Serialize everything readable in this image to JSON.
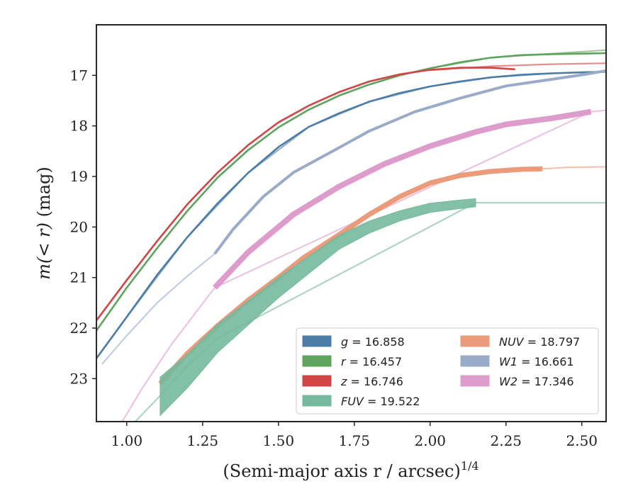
{
  "chart_data": {
    "type": "line",
    "xlabel": "(Semi-major axis r / arcsec)",
    "xlabel_italic": "r",
    "xlabel_sup": "1/4",
    "ylabel_prefix": "m(< r)",
    "ylabel_suffix": " (mag)",
    "xlim": [
      0.9,
      2.58
    ],
    "ylim": [
      23.85,
      16.0
    ],
    "y_inverted": true,
    "xticks": [
      1.0,
      1.25,
      1.5,
      1.75,
      2.0,
      2.25,
      2.5
    ],
    "xtick_labels": [
      "1.00",
      "1.25",
      "1.50",
      "1.75",
      "2.00",
      "2.25",
      "2.50"
    ],
    "yticks": [
      17,
      18,
      19,
      20,
      21,
      22,
      23
    ],
    "ytick_labels": [
      "17",
      "18",
      "19",
      "20",
      "21",
      "22",
      "23"
    ],
    "grid": false,
    "legend_position": "lower-right",
    "series": [
      {
        "name": "g = 16.858",
        "name_var": "g",
        "name_val": " = 16.858",
        "color": "#4c7ca8",
        "profile": [
          [
            0.9,
            22.6
          ],
          [
            1.0,
            21.78
          ],
          [
            1.1,
            20.95
          ],
          [
            1.2,
            20.2
          ],
          [
            1.3,
            19.53
          ],
          [
            1.4,
            18.93
          ],
          [
            1.5,
            18.42
          ],
          [
            1.6,
            18.02
          ],
          [
            1.7,
            17.75
          ],
          [
            1.8,
            17.52
          ],
          [
            1.9,
            17.35
          ],
          [
            2.0,
            17.22
          ],
          [
            2.1,
            17.12
          ],
          [
            2.2,
            17.04
          ],
          [
            2.3,
            16.99
          ],
          [
            2.4,
            16.96
          ],
          [
            2.5,
            16.94
          ],
          [
            2.58,
            16.93
          ]
        ],
        "model": [
          [
            0.9,
            22.6
          ],
          [
            1.0,
            21.78
          ],
          [
            1.2,
            20.2
          ],
          [
            1.4,
            18.93
          ],
          [
            1.6,
            18.02
          ],
          [
            1.8,
            17.52
          ],
          [
            2.0,
            17.22
          ],
          [
            2.2,
            17.04
          ],
          [
            2.4,
            16.96
          ],
          [
            2.58,
            16.93
          ]
        ]
      },
      {
        "name": "r = 16.457",
        "name_var": "r",
        "name_val": " = 16.457",
        "color": "#5ea35e",
        "profile": [
          [
            0.9,
            22.05
          ],
          [
            1.0,
            21.2
          ],
          [
            1.1,
            20.42
          ],
          [
            1.2,
            19.68
          ],
          [
            1.3,
            19.02
          ],
          [
            1.4,
            18.48
          ],
          [
            1.5,
            18.03
          ],
          [
            1.6,
            17.68
          ],
          [
            1.7,
            17.4
          ],
          [
            1.8,
            17.18
          ],
          [
            1.9,
            17.0
          ],
          [
            2.0,
            16.86
          ],
          [
            2.1,
            16.74
          ],
          [
            2.2,
            16.65
          ],
          [
            2.3,
            16.6
          ],
          [
            2.4,
            16.58
          ],
          [
            2.5,
            16.57
          ],
          [
            2.58,
            16.56
          ]
        ],
        "model": [
          [
            2.0,
            16.86
          ],
          [
            2.2,
            16.65
          ],
          [
            2.4,
            16.57
          ],
          [
            2.58,
            16.5
          ]
        ]
      },
      {
        "name": "z = 16.746",
        "name_var": "z",
        "name_val": " = 16.746",
        "color": "#d14545",
        "profile": [
          [
            0.9,
            21.85
          ],
          [
            1.0,
            21.05
          ],
          [
            1.1,
            20.28
          ],
          [
            1.2,
            19.55
          ],
          [
            1.3,
            18.92
          ],
          [
            1.4,
            18.38
          ],
          [
            1.5,
            17.93
          ],
          [
            1.6,
            17.6
          ],
          [
            1.7,
            17.33
          ],
          [
            1.8,
            17.12
          ],
          [
            1.9,
            16.98
          ],
          [
            2.0,
            16.89
          ],
          [
            2.1,
            16.85
          ],
          [
            2.2,
            16.85
          ],
          [
            2.28,
            16.88
          ]
        ],
        "model": [
          [
            2.0,
            16.9
          ],
          [
            2.2,
            16.82
          ],
          [
            2.4,
            16.78
          ],
          [
            2.58,
            16.76
          ]
        ]
      },
      {
        "name": "W1 = 16.661",
        "name_var": "W1",
        "name_val": " = 16.661",
        "color": "#9aabca",
        "profile": [
          [
            1.29,
            20.53
          ],
          [
            1.35,
            20.05
          ],
          [
            1.45,
            19.4
          ],
          [
            1.55,
            18.92
          ],
          [
            1.7,
            18.43
          ],
          [
            1.8,
            18.1
          ],
          [
            1.95,
            17.72
          ],
          [
            2.1,
            17.45
          ],
          [
            2.25,
            17.21
          ],
          [
            2.4,
            17.08
          ],
          [
            2.5,
            16.99
          ],
          [
            2.58,
            16.91
          ]
        ],
        "model": [
          [
            0.92,
            22.7
          ],
          [
            1.0,
            22.15
          ],
          [
            1.1,
            21.5
          ],
          [
            1.2,
            20.97
          ],
          [
            1.29,
            20.53
          ]
        ],
        "width": 4
      },
      {
        "name": "NUV = 18.797",
        "name_var": "NUV",
        "name_val": " = 18.797",
        "color": "#eb9a7a",
        "profile": [
          [
            1.11,
            23.1
          ],
          [
            1.2,
            22.5
          ],
          [
            1.3,
            21.95
          ],
          [
            1.4,
            21.45
          ],
          [
            1.5,
            21.0
          ],
          [
            1.58,
            20.62
          ],
          [
            1.7,
            20.15
          ],
          [
            1.8,
            19.75
          ],
          [
            1.9,
            19.4
          ],
          [
            2.0,
            19.13
          ],
          [
            2.1,
            18.98
          ],
          [
            2.2,
            18.9
          ],
          [
            2.3,
            18.86
          ],
          [
            2.37,
            18.85
          ]
        ],
        "model": [
          [
            2.37,
            18.85
          ],
          [
            2.45,
            18.82
          ],
          [
            2.58,
            18.81
          ]
        ],
        "width": 7
      },
      {
        "name": "W2 = 17.346",
        "name_var": "W2",
        "name_val": " = 17.346",
        "color": "#dd9ccb",
        "profile": [
          [
            1.29,
            21.2
          ],
          [
            1.4,
            20.5
          ],
          [
            1.55,
            19.75
          ],
          [
            1.7,
            19.2
          ],
          [
            1.85,
            18.75
          ],
          [
            2.0,
            18.4
          ],
          [
            2.15,
            18.12
          ],
          [
            2.25,
            17.97
          ],
          [
            2.4,
            17.85
          ],
          [
            2.53,
            17.72
          ]
        ],
        "model": [
          [
            0.98,
            23.9
          ],
          [
            1.05,
            23.2
          ],
          [
            1.15,
            22.3
          ],
          [
            1.22,
            21.75
          ],
          [
            1.29,
            21.2
          ],
          [
            2.53,
            17.72
          ],
          [
            2.58,
            17.69
          ]
        ],
        "width": 8
      },
      {
        "name": "FUV = 19.522",
        "name_var": "FUV",
        "name_val": " = 19.522",
        "color": "#76b99f",
        "profile": [
          [
            1.11,
            23.35
          ],
          [
            1.2,
            22.85
          ],
          [
            1.3,
            22.2
          ],
          [
            1.4,
            21.7
          ],
          [
            1.5,
            21.2
          ],
          [
            1.6,
            20.75
          ],
          [
            1.7,
            20.3
          ],
          [
            1.8,
            20.0
          ],
          [
            1.9,
            19.78
          ],
          [
            2.0,
            19.62
          ],
          [
            2.1,
            19.55
          ],
          [
            2.15,
            19.52
          ]
        ],
        "profile_halfwidth": [
          [
            1.11,
            0.38
          ],
          [
            1.3,
            0.28
          ],
          [
            1.5,
            0.2
          ],
          [
            1.7,
            0.14
          ],
          [
            1.9,
            0.1
          ],
          [
            2.15,
            0.08
          ]
        ],
        "model": [
          [
            1.02,
            23.9
          ],
          [
            1.1,
            23.4
          ],
          [
            1.2,
            22.75
          ],
          [
            1.3,
            22.2
          ],
          [
            2.15,
            19.52
          ],
          [
            2.3,
            19.52
          ],
          [
            2.58,
            19.52
          ]
        ]
      }
    ]
  }
}
